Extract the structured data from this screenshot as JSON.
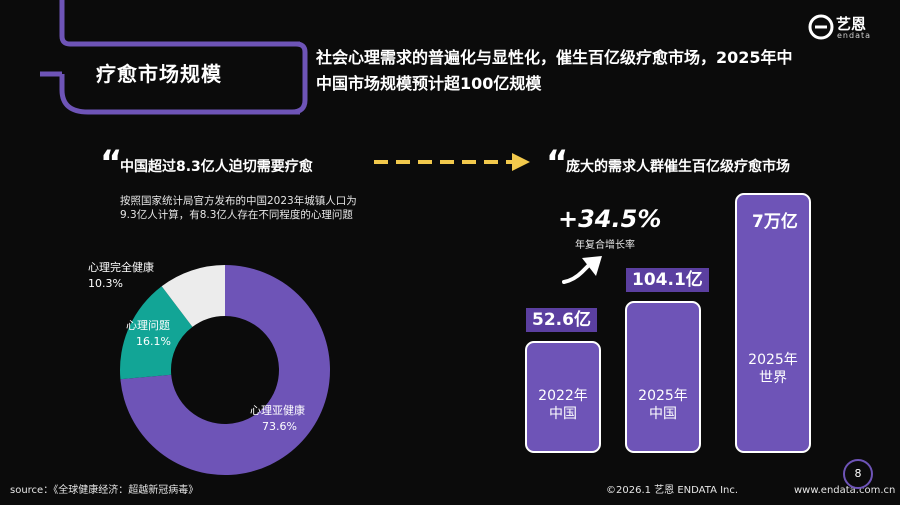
{
  "header": {
    "section_title": "疗愈市场规模",
    "headline_line1": "社会心理需求的普遍化与显性化，催生百亿级疗愈市场，2025年中",
    "headline_line2": "中国市场规模预计超100亿规模",
    "logo_text": "艺恩",
    "logo_sub": "endata",
    "accent_color": "#6e54b7"
  },
  "left_panel": {
    "quote_mark": "“",
    "title": "中国超过8.3亿人迫切需要疗愈",
    "description": "按照国家统计局官方发布的中国2023年城镇人口为9.3亿人计算，有8.3亿人存在不同程度的心理问题"
  },
  "right_panel": {
    "quote_mark": "“",
    "title": "庞大的需求人群催生百亿级疗愈市场",
    "cagr_value": "+34.5%",
    "cagr_label": "年复合增长率"
  },
  "chart_data": [
    {
      "type": "pie",
      "slices": [
        {
          "name": "心理亚健康",
          "value": 73.6,
          "label": "73.6%",
          "color": "#6e54b7"
        },
        {
          "name": "心理问题",
          "value": 16.1,
          "label": "16.1%",
          "color": "#12a596"
        },
        {
          "name": "心理完全健康",
          "value": 10.3,
          "label": "10.3%",
          "color": "#ececec"
        }
      ]
    },
    {
      "type": "bar",
      "categories": [
        "2022年\n中国",
        "2025年\n中国",
        "2025年\n世界"
      ],
      "values": [
        52.6,
        104.1,
        70000
      ],
      "value_labels": [
        "52.6亿",
        "104.1亿",
        "7万亿"
      ],
      "bar_color": "#6e54b7"
    }
  ],
  "footer": {
    "source": "source：《全球健康经济：超越新冠病毒》",
    "copyright": "©2026.1  艺恩 ENDATA Inc.",
    "url": "www.endata.com.cn",
    "page_number": "8"
  }
}
